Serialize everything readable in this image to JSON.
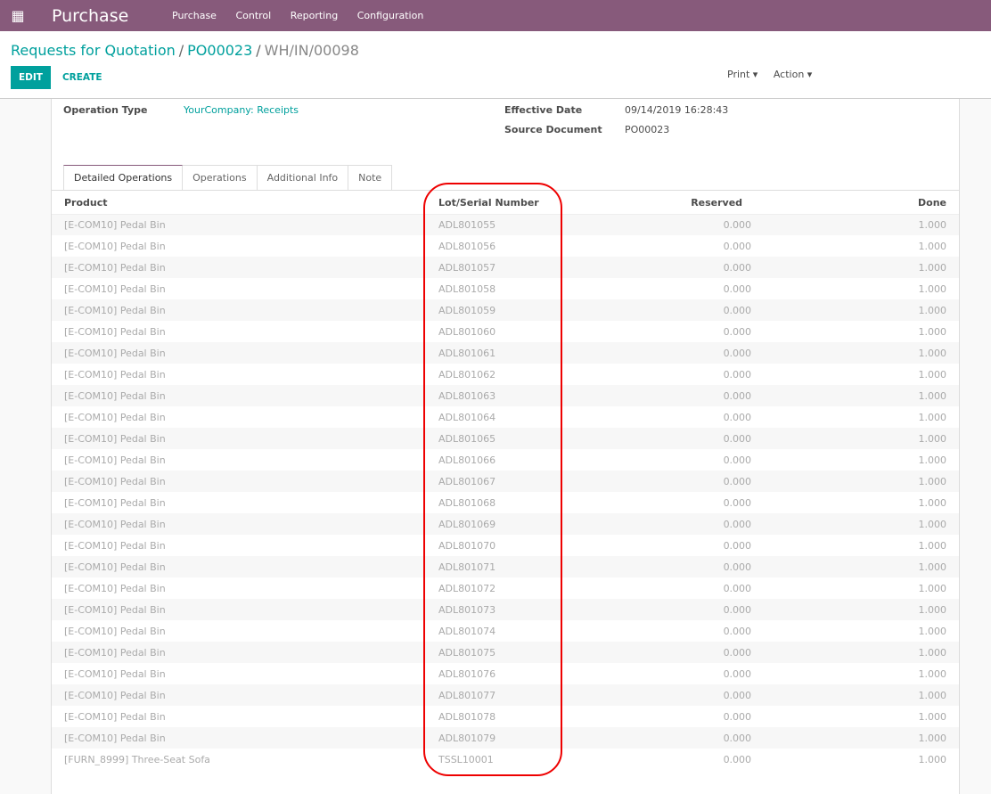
{
  "navbar": {
    "app_title": "Purchase",
    "menu": [
      "Purchase",
      "Control",
      "Reporting",
      "Configuration"
    ]
  },
  "breadcrumb": {
    "items": [
      "Requests for Quotation",
      "PO00023"
    ],
    "current": "WH/IN/00098"
  },
  "buttons": {
    "edit": "EDIT",
    "create": "CREATE",
    "print": "Print",
    "action": "Action"
  },
  "fields": {
    "operation_type_label": "Operation Type",
    "operation_type": "YourCompany: Receipts",
    "effective_date_label": "Effective Date",
    "effective_date": "09/14/2019 16:28:43",
    "source_document_label": "Source Document",
    "source_document": "PO00023"
  },
  "tabs": [
    "Detailed Operations",
    "Operations",
    "Additional Info",
    "Note"
  ],
  "table": {
    "headers": [
      "Product",
      "Lot/Serial Number",
      "Reserved",
      "Done"
    ],
    "rows": [
      [
        "[E-COM10] Pedal Bin",
        "ADL801055",
        "0.000",
        "1.000"
      ],
      [
        "[E-COM10] Pedal Bin",
        "ADL801056",
        "0.000",
        "1.000"
      ],
      [
        "[E-COM10] Pedal Bin",
        "ADL801057",
        "0.000",
        "1.000"
      ],
      [
        "[E-COM10] Pedal Bin",
        "ADL801058",
        "0.000",
        "1.000"
      ],
      [
        "[E-COM10] Pedal Bin",
        "ADL801059",
        "0.000",
        "1.000"
      ],
      [
        "[E-COM10] Pedal Bin",
        "ADL801060",
        "0.000",
        "1.000"
      ],
      [
        "[E-COM10] Pedal Bin",
        "ADL801061",
        "0.000",
        "1.000"
      ],
      [
        "[E-COM10] Pedal Bin",
        "ADL801062",
        "0.000",
        "1.000"
      ],
      [
        "[E-COM10] Pedal Bin",
        "ADL801063",
        "0.000",
        "1.000"
      ],
      [
        "[E-COM10] Pedal Bin",
        "ADL801064",
        "0.000",
        "1.000"
      ],
      [
        "[E-COM10] Pedal Bin",
        "ADL801065",
        "0.000",
        "1.000"
      ],
      [
        "[E-COM10] Pedal Bin",
        "ADL801066",
        "0.000",
        "1.000"
      ],
      [
        "[E-COM10] Pedal Bin",
        "ADL801067",
        "0.000",
        "1.000"
      ],
      [
        "[E-COM10] Pedal Bin",
        "ADL801068",
        "0.000",
        "1.000"
      ],
      [
        "[E-COM10] Pedal Bin",
        "ADL801069",
        "0.000",
        "1.000"
      ],
      [
        "[E-COM10] Pedal Bin",
        "ADL801070",
        "0.000",
        "1.000"
      ],
      [
        "[E-COM10] Pedal Bin",
        "ADL801071",
        "0.000",
        "1.000"
      ],
      [
        "[E-COM10] Pedal Bin",
        "ADL801072",
        "0.000",
        "1.000"
      ],
      [
        "[E-COM10] Pedal Bin",
        "ADL801073",
        "0.000",
        "1.000"
      ],
      [
        "[E-COM10] Pedal Bin",
        "ADL801074",
        "0.000",
        "1.000"
      ],
      [
        "[E-COM10] Pedal Bin",
        "ADL801075",
        "0.000",
        "1.000"
      ],
      [
        "[E-COM10] Pedal Bin",
        "ADL801076",
        "0.000",
        "1.000"
      ],
      [
        "[E-COM10] Pedal Bin",
        "ADL801077",
        "0.000",
        "1.000"
      ],
      [
        "[E-COM10] Pedal Bin",
        "ADL801078",
        "0.000",
        "1.000"
      ],
      [
        "[E-COM10] Pedal Bin",
        "ADL801079",
        "0.000",
        "1.000"
      ],
      [
        "[FURN_8999] Three-Seat Sofa",
        "TSSL10001",
        "0.000",
        "1.000"
      ]
    ]
  },
  "colors": {
    "brand": "#875a7b",
    "accent": "#00a09d",
    "annotation": "#e00000"
  }
}
